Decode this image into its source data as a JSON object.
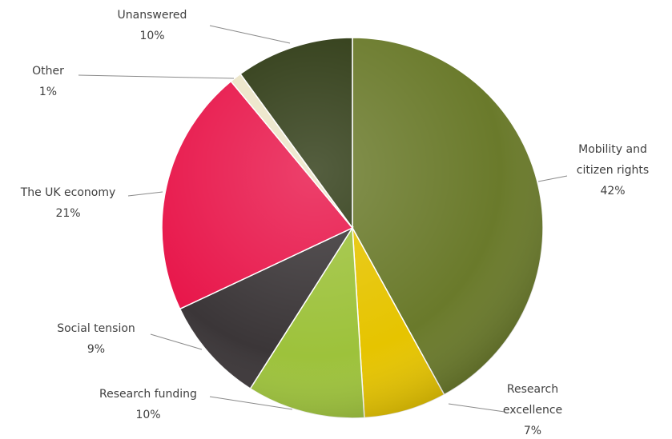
{
  "chart_data": {
    "type": "pie",
    "categories": [
      "Mobility and citizen rights",
      "Research excellence",
      "Research funding",
      "Social tension",
      "The UK economy",
      "Other",
      "Unanswered"
    ],
    "values": [
      42,
      7,
      10,
      9,
      21,
      1,
      10
    ],
    "value_labels": [
      "42%",
      "7%",
      "10%",
      "9%",
      "21%",
      "1%",
      "10%"
    ],
    "colors": [
      "#6a7a2b",
      "#e6c400",
      "#9dc23b",
      "#3b3638",
      "#e8174b",
      "#ece5c8",
      "#2f3b15"
    ]
  }
}
